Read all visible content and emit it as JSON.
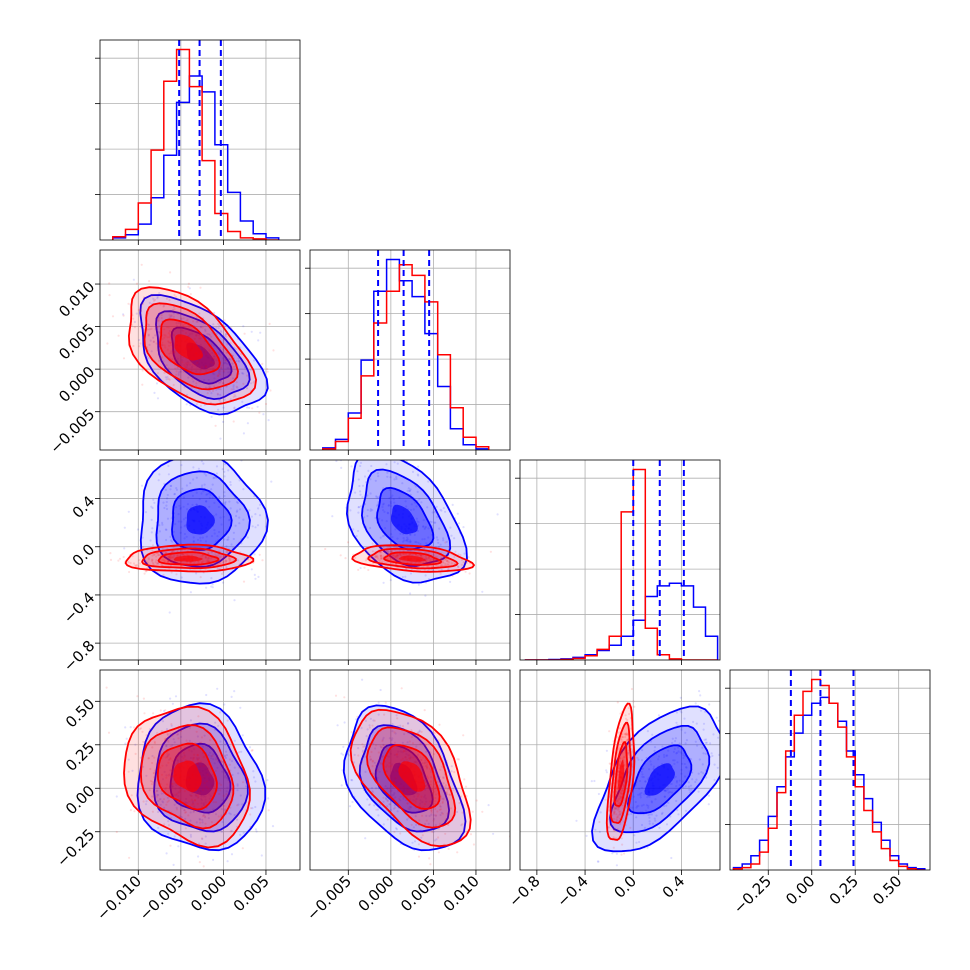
{
  "chart_data": {
    "type": "corner",
    "n_params": 4,
    "grid": true,
    "series": [
      {
        "color": "#0000ff",
        "means": [
          -0.0028,
          0.0015,
          0.22,
          0.05
        ],
        "sds": [
          0.003,
          0.0028,
          0.22,
          0.17
        ],
        "corr": {
          "1-0": -0.5,
          "2-0": 0.0,
          "2-1": -0.4,
          "3-0": -0.1,
          "3-1": -0.4,
          "3-2": 0.55
        }
      },
      {
        "color": "#ff0000",
        "means": [
          -0.0042,
          0.0025,
          -0.1,
          0.07
        ],
        "sds": [
          0.003,
          0.0028,
          0.045,
          0.16
        ],
        "corr": {
          "1-0": -0.5,
          "2-0": 0.0,
          "2-1": -0.3,
          "3-0": -0.2,
          "3-1": -0.5,
          "3-2": 0.5
        }
      }
    ],
    "quantile_color": "#0000ff",
    "quantiles": [
      [
        -0.0052,
        -0.0028,
        -0.0003
      ],
      [
        -0.0015,
        0.0015,
        0.0045
      ],
      [
        0.0,
        0.22,
        0.42
      ],
      [
        -0.12,
        0.05,
        0.24
      ]
    ],
    "axes": [
      {
        "range": [
          -0.0145,
          0.009
        ],
        "ticks": [
          -0.01,
          -0.005,
          0.0,
          0.005
        ],
        "tick_labels": [
          "−0.010",
          "−0.005",
          "0.000",
          "0.005"
        ]
      },
      {
        "range": [
          -0.0095,
          0.014
        ],
        "ticks": [
          -0.005,
          0.0,
          0.005,
          0.01
        ],
        "tick_labels": [
          "−0.005",
          "0.000",
          "0.005",
          "0.010"
        ]
      },
      {
        "range": [
          -0.94,
          0.72
        ],
        "ticks": [
          -0.8,
          -0.4,
          0.0,
          0.4
        ],
        "tick_labels": [
          "−0.8",
          "−0.4",
          "0.0",
          "0.4"
        ]
      },
      {
        "range": [
          -0.47,
          0.68
        ],
        "ticks": [
          -0.25,
          0.0,
          0.25,
          0.5
        ],
        "tick_labels": [
          "−0.25",
          "0.00",
          "0.25",
          "0.50"
        ]
      }
    ],
    "histograms": [
      {
        "edges": [
          -0.013,
          -0.0115,
          -0.01,
          -0.0085,
          -0.007,
          -0.0055,
          -0.004,
          -0.0025,
          -0.001,
          0.0005,
          0.002,
          0.0035,
          0.005,
          0.0065
        ],
        "blue": [
          2,
          5,
          15,
          40,
          80,
          130,
          155,
          140,
          90,
          45,
          18,
          6,
          2
        ],
        "red": [
          3,
          10,
          35,
          85,
          150,
          180,
          145,
          75,
          25,
          8,
          2,
          1,
          0
        ]
      },
      {
        "edges": [
          -0.008,
          -0.0065,
          -0.005,
          -0.0035,
          -0.002,
          -0.0005,
          0.001,
          0.0025,
          0.004,
          0.0055,
          0.007,
          0.0085,
          0.01,
          0.0115
        ],
        "blue": [
          2,
          10,
          35,
          85,
          150,
          180,
          160,
          145,
          110,
          60,
          20,
          5,
          1
        ],
        "red": [
          1,
          8,
          30,
          70,
          120,
          150,
          175,
          165,
          140,
          90,
          40,
          12,
          3
        ]
      },
      {
        "edges": [
          -0.9,
          -0.8,
          -0.7,
          -0.6,
          -0.5,
          -0.4,
          -0.3,
          -0.2,
          -0.1,
          0.0,
          0.1,
          0.2,
          0.3,
          0.4,
          0.5,
          0.6,
          0.7
        ],
        "blue": [
          0,
          0,
          1,
          2,
          5,
          10,
          18,
          28,
          45,
          75,
          120,
          140,
          145,
          140,
          100,
          45
        ],
        "red": [
          0,
          0,
          0,
          1,
          3,
          8,
          20,
          45,
          280,
          360,
          60,
          10,
          2,
          0,
          0,
          0
        ]
      },
      {
        "edges": [
          -0.45,
          -0.4,
          -0.35,
          -0.3,
          -0.25,
          -0.2,
          -0.15,
          -0.1,
          -0.05,
          0.0,
          0.05,
          0.1,
          0.15,
          0.2,
          0.25,
          0.3,
          0.35,
          0.4,
          0.45,
          0.5,
          0.55,
          0.6,
          0.65
        ],
        "blue": [
          2,
          5,
          12,
          25,
          45,
          70,
          95,
          115,
          130,
          140,
          145,
          140,
          125,
          100,
          80,
          60,
          40,
          25,
          12,
          5,
          2,
          1
        ],
        "red": [
          1,
          2,
          5,
          15,
          35,
          65,
          100,
          130,
          150,
          160,
          155,
          140,
          120,
          95,
          70,
          50,
          32,
          18,
          8,
          3,
          1,
          0
        ]
      }
    ]
  }
}
